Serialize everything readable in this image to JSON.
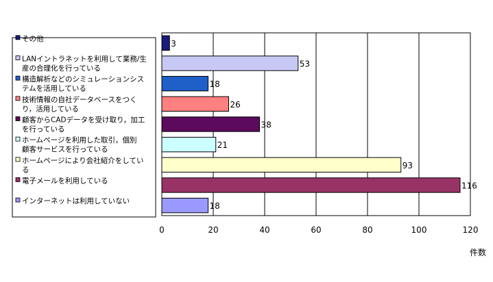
{
  "chart_data": {
    "type": "bar",
    "orientation": "horizontal",
    "categories": [
      "その他",
      "LANイントラネットを利用して業務/生産の合理化を行っている",
      "構造解析などのシミュレーションシステムを活用している",
      "技術情報の自社データベースをつくり，活用している",
      "顧客からCADデータを受け取り，加工を行っている",
      "ホームページを利用した取引，個別顧客サービスを行っている",
      "ホームページにより会社紹介をしている",
      "電子メールを利用している",
      "インターネットは利用していない"
    ],
    "legend_lines": [
      [
        "その他"
      ],
      [
        "LANイントラネットを利用して業務/生",
        "産の合理化を行っている"
      ],
      [
        "構造解析などのシミュレーションシス",
        "テムを活用している"
      ],
      [
        "技術情報の自社データベースをつく",
        "り，活用している"
      ],
      [
        "顧客からCADデータを受け取り，加工",
        "を行っている"
      ],
      [
        "ホームページを利用した取引，個別",
        "顧客サービスを行っている"
      ],
      [
        "ホームページにより会社紹介をしてい",
        "る"
      ],
      [
        "電子メールを利用している"
      ],
      [
        "インターネットは利用していない"
      ]
    ],
    "values": [
      3,
      53,
      18,
      26,
      38,
      21,
      93,
      116,
      18
    ],
    "colors": [
      "#1a1a7a",
      "#c8c8f4",
      "#1f5fc8",
      "#ff8080",
      "#5c0a5c",
      "#ccffff",
      "#ffffcc",
      "#993366",
      "#9999ff"
    ],
    "xlim": [
      0,
      120
    ],
    "xticks": [
      0,
      20,
      40,
      60,
      80,
      100,
      120
    ],
    "xlabel": "件数",
    "grid": true,
    "legend_position": "left"
  }
}
